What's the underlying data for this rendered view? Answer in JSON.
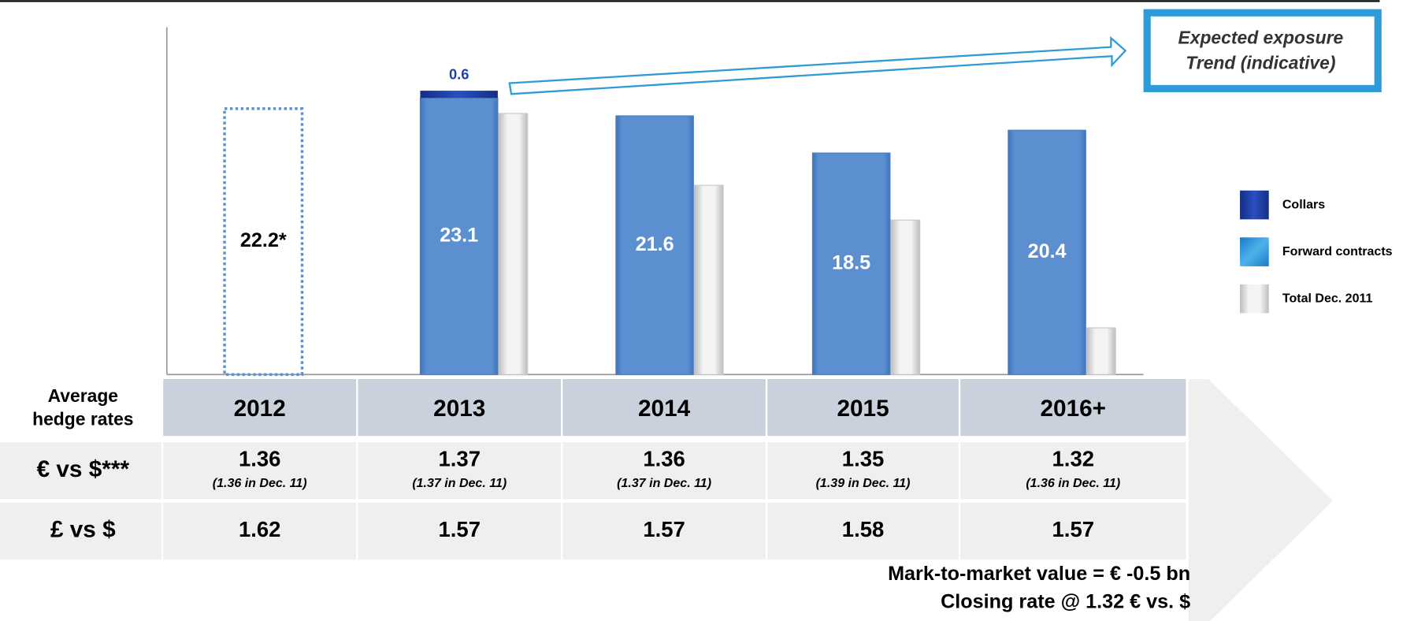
{
  "chart_data": {
    "type": "bar",
    "categories": [
      "2012",
      "2013",
      "2014",
      "2015",
      "2016+"
    ],
    "ylim": [
      0,
      29
    ],
    "legend": "right",
    "series": [
      {
        "name": "Collars",
        "color": "#1f3fa8",
        "values": [
          null,
          0.6,
          null,
          null,
          null
        ],
        "stack": true
      },
      {
        "name": "Forward contracts",
        "color": "#5b8fd0",
        "values": [
          22.2,
          23.1,
          21.6,
          18.5,
          20.4
        ],
        "value_labels": [
          "22.2*",
          "23.1",
          "21.6",
          "18.5",
          "20.4"
        ],
        "dotted": [
          true,
          false,
          false,
          false,
          false
        ]
      },
      {
        "name": "Total Dec. 2011",
        "color": "#d9d9d9",
        "values": [
          null,
          21.8,
          15.8,
          12.9,
          3.9
        ]
      }
    ],
    "annotation": [
      "Expected exposure",
      "Trend (indicative)"
    ]
  },
  "table": {
    "header_label": [
      "Average",
      "hedge rates"
    ],
    "rows": [
      {
        "label": "€ vs $***",
        "values": [
          "1.36",
          "1.37",
          "1.36",
          "1.35",
          "1.32"
        ],
        "notes": [
          "(1.36 in Dec. 11)",
          "(1.37 in Dec. 11)",
          "(1.37 in Dec. 11)",
          "(1.39 in Dec. 11)",
          "(1.36 in Dec. 11)"
        ]
      },
      {
        "label": "£ vs $",
        "values": [
          "1.62",
          "1.57",
          "1.57",
          "1.58",
          "1.57"
        ]
      }
    ]
  },
  "footer": [
    "Mark-to-market value = € -0.5 bn",
    "Closing rate @ 1.32 € vs. $"
  ]
}
